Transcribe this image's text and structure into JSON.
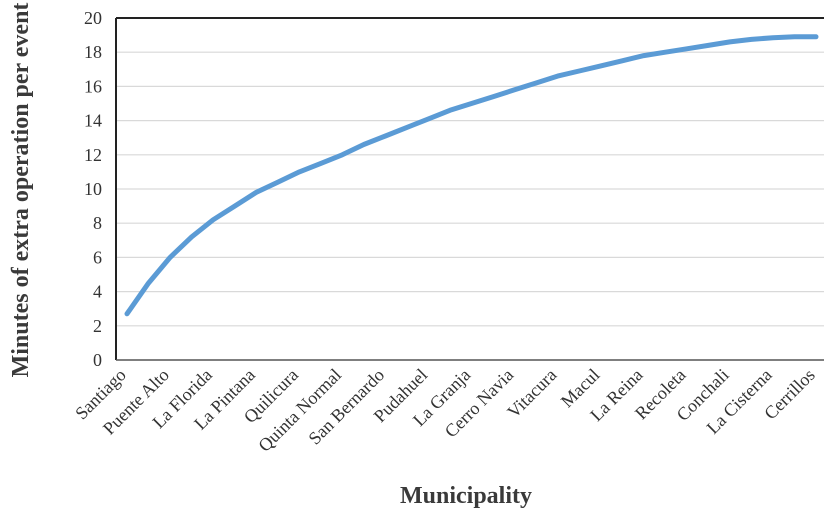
{
  "chart_data": {
    "type": "line",
    "title": "",
    "xlabel": "Municipality",
    "ylabel": "Minutes of extra operation per event",
    "tick_labels": [
      "Santiago",
      "Puente Alto",
      "La Florida",
      "La Pintana",
      "Quilicura",
      "Quinta Normal",
      "San Bernardo",
      "Pudahuel",
      "La Granja",
      "Cerro Navia",
      "Vitacura",
      "Macul",
      "La Reina",
      "Recoleta",
      "Conchali",
      "La Cisterna",
      "Cerrillos"
    ],
    "x": [
      1,
      2,
      3,
      4,
      5,
      6,
      7,
      8,
      9,
      10,
      11,
      12,
      13,
      14,
      15,
      16,
      17,
      18,
      19,
      20,
      21,
      22,
      23,
      24,
      25,
      26,
      27,
      28,
      29,
      30,
      31,
      32,
      33
    ],
    "y": [
      2.7,
      4.5,
      6.0,
      7.2,
      8.2,
      9.0,
      9.8,
      10.4,
      11.0,
      11.5,
      12.0,
      12.6,
      13.1,
      13.6,
      14.1,
      14.6,
      15.0,
      15.4,
      15.8,
      16.2,
      16.6,
      16.9,
      17.2,
      17.5,
      17.8,
      18.0,
      18.2,
      18.4,
      18.6,
      18.75,
      18.85,
      18.9,
      18.9
    ],
    "yticks": [
      0,
      2,
      4,
      6,
      8,
      10,
      12,
      14,
      16,
      18,
      20
    ],
    "ylim": [
      0,
      20
    ],
    "grid": "horizontal",
    "legend": "none",
    "line_color": "#5b9bd5"
  }
}
